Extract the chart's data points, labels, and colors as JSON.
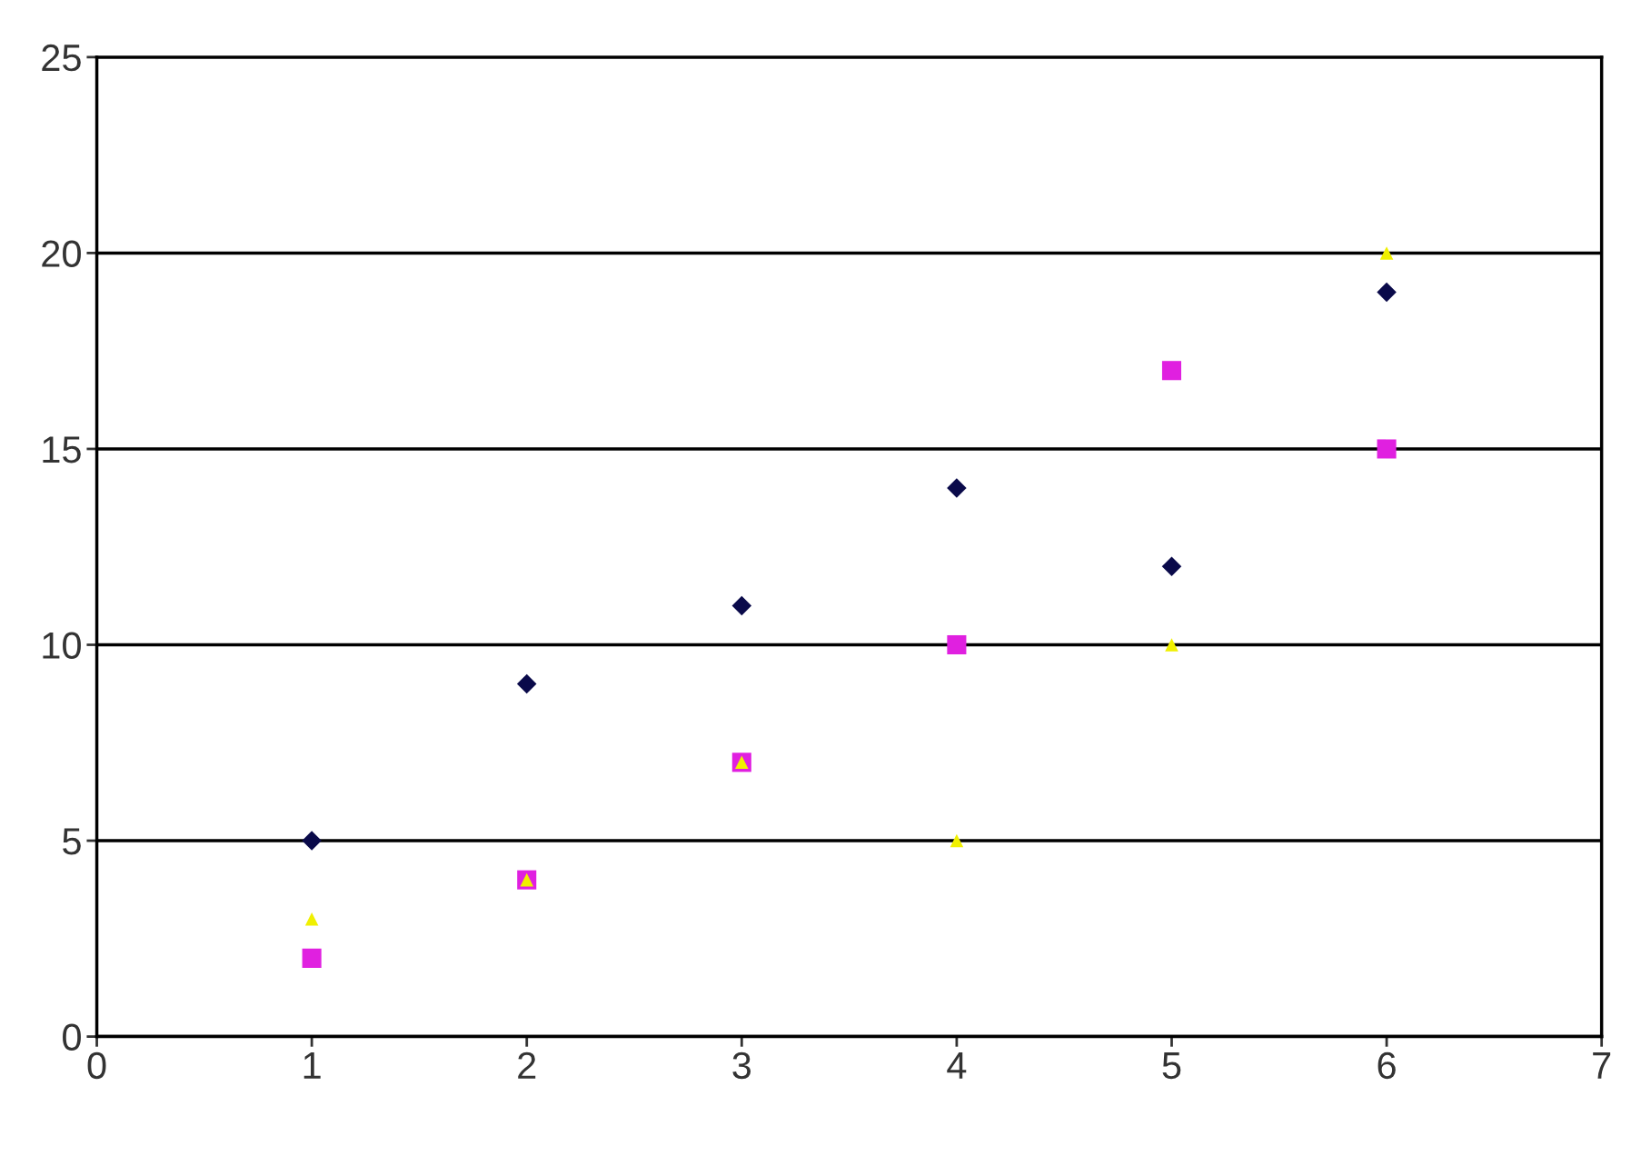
{
  "chart_data": {
    "type": "scatter",
    "xlim": [
      0,
      7
    ],
    "ylim": [
      0,
      25
    ],
    "xticks": [
      0,
      1,
      2,
      3,
      4,
      5,
      6,
      7
    ],
    "yticks": [
      0,
      5,
      10,
      15,
      20,
      25
    ],
    "grid": "y",
    "legend": false,
    "series": [
      {
        "color": "#0a0a4a",
        "marker": "diamond",
        "x": [
          1,
          2,
          3,
          4,
          5,
          6
        ],
        "values": [
          5,
          9,
          11,
          14,
          12,
          19
        ]
      },
      {
        "color": "#e020e0",
        "marker": "square",
        "x": [
          1,
          2,
          3,
          4,
          5,
          6
        ],
        "values": [
          2,
          4,
          7,
          10,
          17,
          15
        ]
      },
      {
        "color": "#f0f000",
        "marker": "triangle",
        "x": [
          1,
          2,
          3,
          4,
          5,
          6
        ],
        "values": [
          3,
          4,
          7,
          5,
          10,
          20
        ]
      }
    ]
  }
}
